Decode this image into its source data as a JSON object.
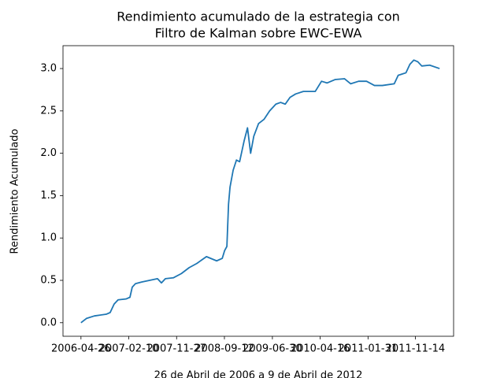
{
  "chart_data": {
    "type": "line",
    "title": [
      "Rendimiento acumulado de la estrategia con",
      "Filtro de Kalman sobre EWC-EWA"
    ],
    "xlabel": "26 de Abril de 2006 a 9 de Abril de 2012",
    "ylabel": "Rendimiento Acumulado",
    "x": [
      "2006-04-26",
      "2006-05-29",
      "2006-07-16",
      "2006-09-26",
      "2006-10-20",
      "2006-11-13",
      "2006-12-07",
      "2007-01-24",
      "2007-02-17",
      "2007-03-03",
      "2007-03-22",
      "2007-04-29",
      "2007-06-16",
      "2007-08-03",
      "2007-08-27",
      "2007-09-20",
      "2007-11-07",
      "2007-12-26",
      "2008-02-11",
      "2008-03-29",
      "2008-05-26",
      "2008-07-27",
      "2008-08-30",
      "2008-09-13",
      "2008-09-27",
      "2008-10-07",
      "2008-10-16",
      "2008-11-04",
      "2008-11-24",
      "2008-12-13",
      "2009-01-10",
      "2009-01-30",
      "2009-02-18",
      "2009-03-09",
      "2009-04-07",
      "2009-05-10",
      "2009-06-13",
      "2009-07-21",
      "2009-08-19",
      "2009-09-16",
      "2009-10-15",
      "2009-11-18",
      "2010-01-04",
      "2010-03-17",
      "2010-04-24",
      "2010-05-28",
      "2010-07-15",
      "2010-09-10",
      "2010-10-18",
      "2010-12-05",
      "2011-01-22",
      "2011-03-11",
      "2011-04-28",
      "2011-07-09",
      "2011-08-02",
      "2011-09-18",
      "2011-10-12",
      "2011-11-05",
      "2011-11-29",
      "2011-12-23",
      "2012-02-09",
      "2012-04-09"
    ],
    "series": [
      {
        "color": "#1f77b4",
        "values": [
          0.0,
          0.05,
          0.08,
          0.1,
          0.12,
          0.22,
          0.27,
          0.28,
          0.3,
          0.42,
          0.46,
          0.48,
          0.5,
          0.52,
          0.47,
          0.52,
          0.53,
          0.58,
          0.65,
          0.7,
          0.78,
          0.73,
          0.76,
          0.85,
          0.9,
          1.4,
          1.6,
          1.8,
          1.92,
          1.9,
          2.15,
          2.3,
          2.0,
          2.2,
          2.35,
          2.4,
          2.5,
          2.58,
          2.6,
          2.58,
          2.66,
          2.7,
          2.73,
          2.73,
          2.85,
          2.83,
          2.87,
          2.88,
          2.82,
          2.85,
          2.85,
          2.8,
          2.8,
          2.82,
          2.92,
          2.95,
          3.05,
          3.1,
          3.08,
          3.03,
          3.04,
          3.0
        ]
      }
    ],
    "xlim": [
      "2006-01-07",
      "2012-07-03"
    ],
    "xticks": [
      "2006-04-26",
      "2007-02-10",
      "2007-11-27",
      "2008-09-12",
      "2009-06-30",
      "2010-04-16",
      "2011-01-31",
      "2011-11-14"
    ],
    "ylim": [
      -0.16,
      3.27
    ],
    "yticks": [
      {
        "value": 0,
        "label": "0.0"
      },
      0.5,
      {
        "value": 1,
        "label": "1.0"
      },
      1.5,
      {
        "value": 2,
        "label": "2.0"
      },
      2.5,
      {
        "value": 3,
        "label": "3.0"
      }
    ]
  }
}
